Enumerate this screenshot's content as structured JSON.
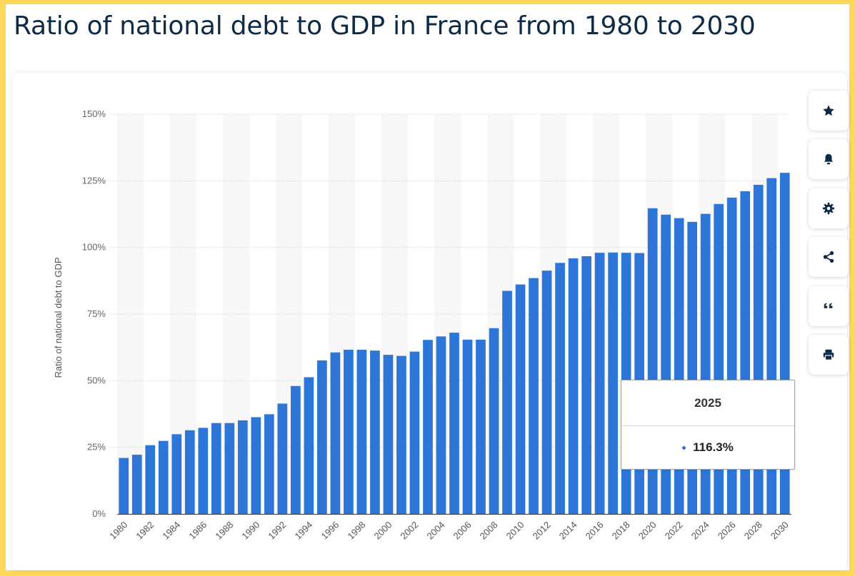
{
  "page": {
    "title": "Ratio of national debt to GDP in France from 1980 to 2030"
  },
  "colors": {
    "bar": "#2d76d8",
    "background_frame": "#fdd85a",
    "title": "#0f2a44",
    "band": "#f7f7f7",
    "grid": "#cccccc"
  },
  "tooltip": {
    "year": "2025",
    "value": "116.3%"
  },
  "toolbar": [
    {
      "name": "favorite-button",
      "icon": "star-icon"
    },
    {
      "name": "notification-button",
      "icon": "bell-icon"
    },
    {
      "name": "settings-button",
      "icon": "gear-icon"
    },
    {
      "name": "share-button",
      "icon": "share-icon"
    },
    {
      "name": "cite-button",
      "icon": "quote-icon"
    },
    {
      "name": "print-button",
      "icon": "printer-icon"
    }
  ],
  "chart_data": {
    "type": "bar",
    "title": "",
    "xlabel": "",
    "ylabel": "Ratio of national debt to GDP",
    "ylim": [
      0,
      150
    ],
    "yticks": [
      0,
      25,
      50,
      75,
      100,
      125,
      150
    ],
    "ytick_labels": [
      "0%",
      "25%",
      "50%",
      "75%",
      "100%",
      "125%",
      "150%"
    ],
    "grid": true,
    "legend": "none",
    "categories": [
      "1980",
      "1981",
      "1982",
      "1983",
      "1984",
      "1985",
      "1986",
      "1987",
      "1988",
      "1989",
      "1990",
      "1991",
      "1992",
      "1993",
      "1994",
      "1995",
      "1996",
      "1997",
      "1998",
      "1999",
      "2000",
      "2001",
      "2002",
      "2003",
      "2004",
      "2005",
      "2006",
      "2007",
      "2008",
      "2009",
      "2010",
      "2011",
      "2012",
      "2013",
      "2014",
      "2015",
      "2016",
      "2017",
      "2018",
      "2019",
      "2020",
      "2021",
      "2022",
      "2023",
      "2024",
      "2025",
      "2026",
      "2027",
      "2028",
      "2029",
      "2030"
    ],
    "xtick_labels": [
      "1980",
      "1982",
      "1984",
      "1986",
      "1988",
      "1990",
      "1992",
      "1994",
      "1996",
      "1998",
      "2000",
      "2002",
      "2004",
      "2006",
      "2008",
      "2010",
      "2012",
      "2014",
      "2016",
      "2018",
      "2020",
      "2022",
      "2024",
      "2026",
      "2028",
      "2030"
    ],
    "values": [
      21.0,
      22.2,
      25.8,
      27.4,
      29.9,
      31.4,
      32.3,
      34.1,
      34.1,
      35.1,
      36.3,
      37.4,
      41.4,
      48.0,
      51.3,
      57.6,
      60.6,
      61.6,
      61.6,
      61.3,
      59.7,
      59.3,
      60.9,
      65.3,
      66.6,
      68.0,
      65.4,
      65.4,
      69.7,
      83.7,
      86.1,
      88.5,
      91.3,
      94.2,
      95.9,
      96.7,
      98.0,
      98.1,
      98.0,
      97.9,
      114.7,
      112.3,
      111.0,
      109.6,
      112.6,
      116.3,
      118.7,
      121.1,
      123.5,
      126.0,
      128.0
    ]
  }
}
